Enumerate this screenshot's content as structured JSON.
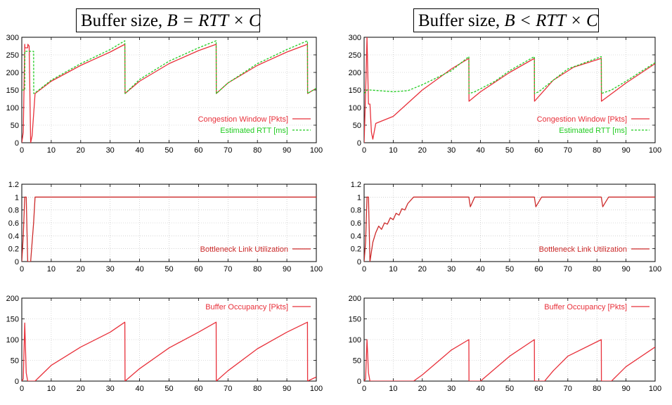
{
  "titles": {
    "left": {
      "prefix": "Buffer size, ",
      "math": "B = RTT × C"
    },
    "right": {
      "prefix": "Buffer size, ",
      "math": "B < RTT × C"
    }
  },
  "colors": {
    "cwnd": "#e8303a",
    "rtt": "#22cc22",
    "util": "#cc2a2a",
    "buffer": "#e8303a",
    "grid": "#bbbbbb"
  },
  "chart_data": [
    {
      "type": "line",
      "id": "left-cwnd",
      "xlim": [
        0,
        100
      ],
      "ylim": [
        0,
        300
      ],
      "xticks": [
        0,
        10,
        20,
        30,
        40,
        50,
        60,
        70,
        80,
        90,
        100
      ],
      "yticks": [
        0,
        50,
        100,
        150,
        200,
        250,
        300
      ],
      "legend": "bottom-right",
      "grid": true,
      "series": [
        {
          "name": "Congestion Window [Pkts]",
          "style": "solid",
          "color": "#e8303a",
          "x": [
            0,
            0.5,
            1,
            1.05,
            2,
            2.05,
            2.5,
            3,
            3.5,
            4,
            4.5,
            10,
            20,
            30,
            35,
            35.05,
            40,
            50,
            60,
            66,
            66.05,
            70,
            80,
            90,
            97,
            97.05,
            100
          ],
          "y": [
            0,
            30,
            280,
            270,
            270,
            280,
            275,
            0,
            20,
            80,
            140,
            175,
            220,
            258,
            280,
            140,
            175,
            225,
            262,
            280,
            140,
            170,
            220,
            258,
            280,
            140,
            155
          ]
        },
        {
          "name": "Estimated RTT   [ms]",
          "style": "dashed",
          "color": "#22cc22",
          "x": [
            0,
            1,
            1.05,
            4,
            4.05,
            5,
            10,
            20,
            30,
            35,
            35.05,
            40,
            50,
            60,
            66,
            66.05,
            70,
            80,
            90,
            97,
            97.05,
            100
          ],
          "y": [
            150,
            150,
            260,
            260,
            140,
            145,
            178,
            225,
            265,
            290,
            140,
            180,
            232,
            270,
            290,
            140,
            170,
            225,
            265,
            290,
            140,
            155
          ]
        }
      ]
    },
    {
      "type": "line",
      "id": "left-util",
      "xlim": [
        0,
        100
      ],
      "ylim": [
        0,
        1.2
      ],
      "xticks": [
        0,
        10,
        20,
        30,
        40,
        50,
        60,
        70,
        80,
        90,
        100
      ],
      "yticks": [
        0,
        0.2,
        0.4,
        0.6,
        0.8,
        1,
        1.2
      ],
      "legend": "bottom-right",
      "grid": true,
      "series": [
        {
          "name": "Bottleneck Link Utilization",
          "style": "solid",
          "color": "#cc2a2a",
          "x": [
            0,
            0.5,
            1,
            1.5,
            2,
            2.5,
            3,
            3.5,
            4,
            4.5,
            10,
            100
          ],
          "y": [
            0,
            0.4,
            1,
            1,
            0,
            0,
            0,
            0.3,
            0.6,
            1,
            1,
            1
          ]
        }
      ]
    },
    {
      "type": "line",
      "id": "left-buffer",
      "xlim": [
        0,
        100
      ],
      "ylim": [
        0,
        200
      ],
      "xticks": [
        0,
        10,
        20,
        30,
        40,
        50,
        60,
        70,
        80,
        90,
        100
      ],
      "yticks": [
        0,
        50,
        100,
        150,
        200
      ],
      "legend": "top-right",
      "grid": true,
      "series": [
        {
          "name": "Buffer Occupancy [Pkts]",
          "style": "solid",
          "color": "#e8303a",
          "x": [
            0,
            0.5,
            1,
            1.5,
            2,
            3,
            4,
            4.5,
            10,
            20,
            30,
            35,
            35.05,
            40,
            50,
            60,
            66,
            66.05,
            70,
            80,
            90,
            97,
            97.05,
            100
          ],
          "y": [
            0,
            5,
            140,
            20,
            0,
            0,
            0,
            0,
            38,
            82,
            118,
            142,
            0,
            30,
            80,
            118,
            142,
            0,
            25,
            78,
            118,
            142,
            0,
            10
          ]
        }
      ]
    },
    {
      "type": "line",
      "id": "right-cwnd",
      "xlim": [
        0,
        100
      ],
      "ylim": [
        0,
        300
      ],
      "xticks": [
        0,
        10,
        20,
        30,
        40,
        50,
        60,
        70,
        80,
        90,
        100
      ],
      "yticks": [
        0,
        50,
        100,
        150,
        200,
        250,
        300
      ],
      "legend": "bottom-right",
      "grid": true,
      "series": [
        {
          "name": "Congestion Window [Pkts]",
          "style": "solid",
          "color": "#e8303a",
          "x": [
            0,
            0.5,
            1,
            1.5,
            2,
            2.5,
            3,
            4,
            10,
            20,
            30,
            36,
            36.05,
            40,
            50,
            58.5,
            58.55,
            65,
            72,
            81.5,
            81.55,
            90,
            100
          ],
          "y": [
            0,
            140,
            300,
            110,
            110,
            30,
            10,
            55,
            75,
            150,
            210,
            240,
            118,
            145,
            200,
            240,
            118,
            178,
            215,
            240,
            118,
            170,
            225
          ]
        },
        {
          "name": "Estimated RTT   [ms]",
          "style": "dashed",
          "color": "#22cc22",
          "x": [
            0,
            1,
            2,
            10,
            15,
            20,
            30,
            36,
            36.05,
            38,
            45,
            50,
            58.5,
            58.55,
            60,
            65,
            70,
            81.5,
            81.55,
            85,
            90,
            100
          ],
          "y": [
            140,
            150,
            150,
            145,
            148,
            165,
            205,
            245,
            140,
            145,
            175,
            205,
            245,
            140,
            145,
            178,
            210,
            245,
            140,
            150,
            175,
            228
          ]
        }
      ]
    },
    {
      "type": "line",
      "id": "right-util",
      "xlim": [
        0,
        100
      ],
      "ylim": [
        0,
        1.2
      ],
      "xticks": [
        0,
        10,
        20,
        30,
        40,
        50,
        60,
        70,
        80,
        90,
        100
      ],
      "yticks": [
        0,
        0.2,
        0.4,
        0.6,
        0.8,
        1,
        1.2
      ],
      "legend": "bottom-right",
      "grid": true,
      "series": [
        {
          "name": "Bottleneck Link Utilization",
          "style": "solid",
          "color": "#cc2a2a",
          "x": [
            0,
            0.5,
            1,
            1.5,
            2,
            3,
            4,
            5,
            6,
            7,
            8,
            9,
            10,
            11,
            12,
            13,
            14,
            15,
            16,
            17,
            36,
            36.5,
            38,
            58.5,
            59,
            61,
            81.5,
            82,
            84,
            100
          ],
          "y": [
            0,
            0.3,
            1,
            1,
            0,
            0.3,
            0.45,
            0.55,
            0.5,
            0.6,
            0.58,
            0.68,
            0.65,
            0.75,
            0.72,
            0.82,
            0.8,
            0.9,
            0.95,
            1,
            1,
            0.85,
            1,
            1,
            0.85,
            1,
            1,
            0.85,
            1,
            1
          ]
        }
      ]
    },
    {
      "type": "line",
      "id": "right-buffer",
      "xlim": [
        0,
        100
      ],
      "ylim": [
        0,
        200
      ],
      "xticks": [
        0,
        10,
        20,
        30,
        40,
        50,
        60,
        70,
        80,
        90,
        100
      ],
      "yticks": [
        0,
        50,
        100,
        150,
        200
      ],
      "legend": "top-right",
      "grid": true,
      "series": [
        {
          "name": "Buffer Occupancy [Pkts]",
          "style": "solid",
          "color": "#e8303a",
          "x": [
            0,
            0.5,
            1,
            1.5,
            2,
            3,
            10,
            17,
            20,
            25,
            30,
            36,
            36.05,
            40,
            45,
            50,
            58.5,
            58.55,
            62,
            65,
            70,
            81.5,
            81.55,
            85,
            90,
            100
          ],
          "y": [
            0,
            5,
            100,
            20,
            0,
            0,
            0,
            0,
            15,
            45,
            75,
            100,
            0,
            0,
            30,
            60,
            100,
            0,
            0,
            25,
            60,
            100,
            0,
            0,
            35,
            82
          ]
        }
      ]
    }
  ]
}
